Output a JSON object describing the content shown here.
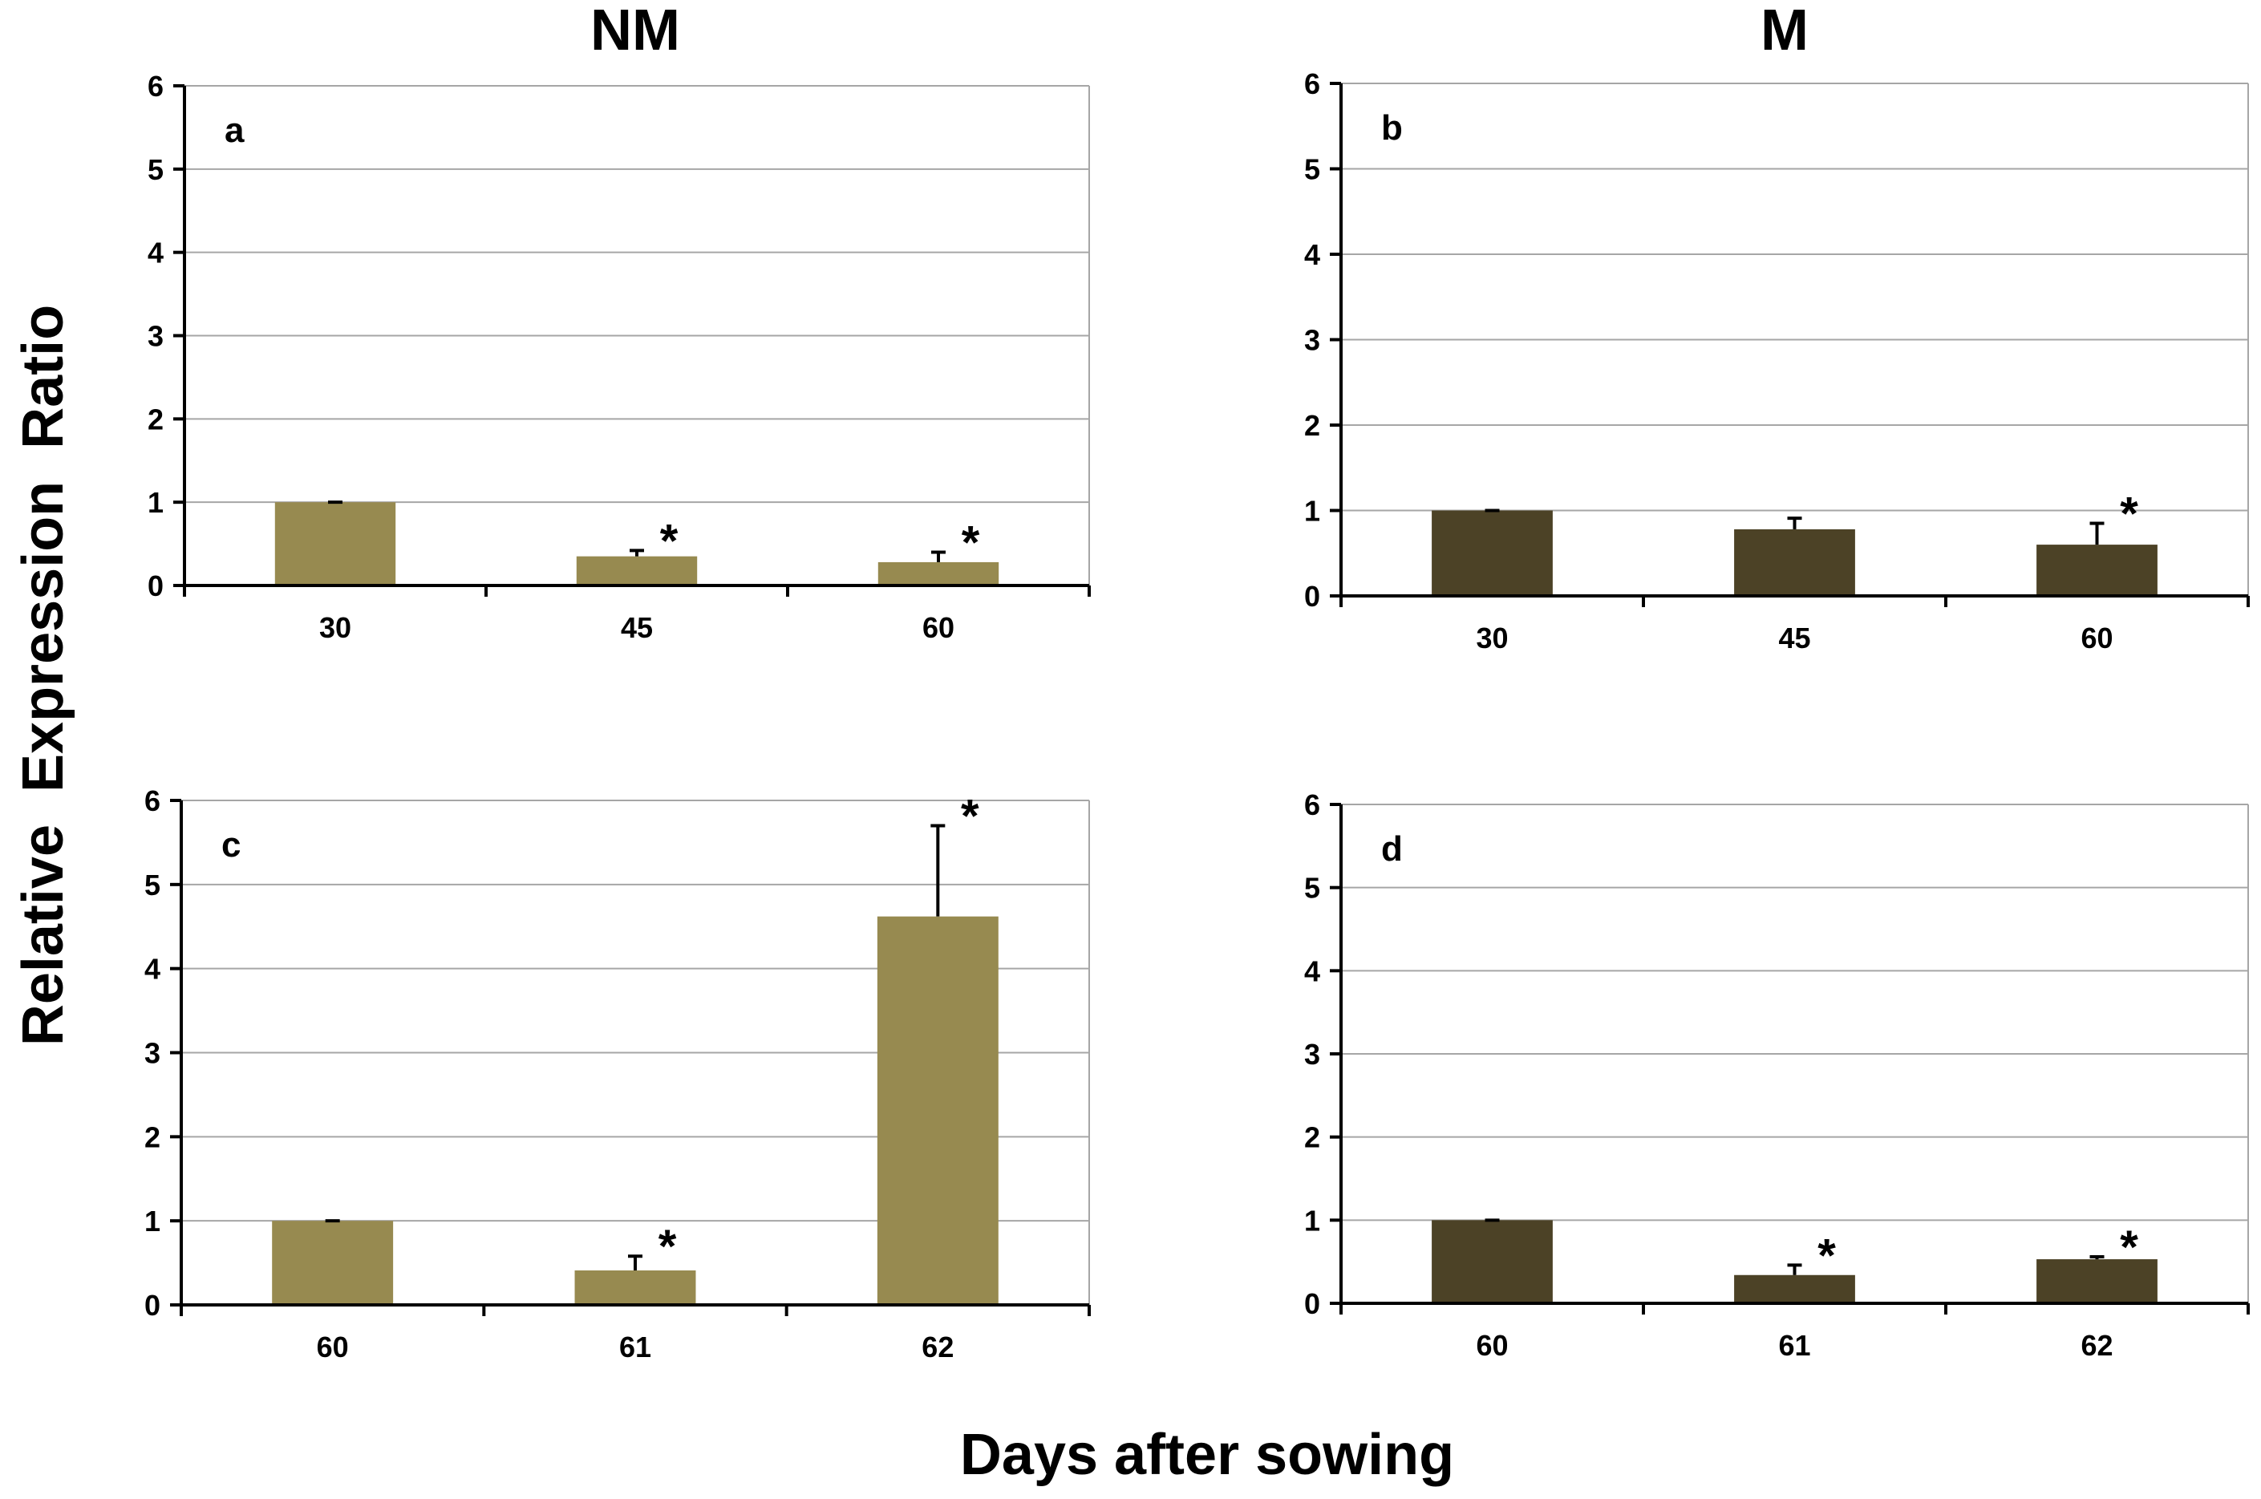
{
  "figure": {
    "column_titles": [
      "NM",
      "M"
    ],
    "ylabel": "Relative  Expression  Ratio",
    "xlabel": "Days after sowing"
  },
  "chart_data": [
    {
      "type": "bar",
      "panel": "a",
      "column": "NM",
      "categories": [
        "30",
        "45",
        "60"
      ],
      "values": [
        1.0,
        0.35,
        0.28
      ],
      "errors": [
        0.0,
        0.07,
        0.12
      ],
      "significant": [
        false,
        true,
        true
      ],
      "ylim": [
        0,
        6
      ],
      "yticks": [
        0,
        1,
        2,
        3,
        4,
        5,
        6
      ],
      "grid": true,
      "color": "#978A50"
    },
    {
      "type": "bar",
      "panel": "b",
      "column": "M",
      "categories": [
        "30",
        "45",
        "60"
      ],
      "values": [
        1.0,
        0.78,
        0.6
      ],
      "errors": [
        0.0,
        0.13,
        0.25
      ],
      "significant": [
        false,
        false,
        true
      ],
      "ylim": [
        0,
        6
      ],
      "yticks": [
        0,
        1,
        2,
        3,
        4,
        5,
        6
      ],
      "grid": true,
      "color": "#4C4226"
    },
    {
      "type": "bar",
      "panel": "c",
      "column": "NM",
      "categories": [
        "60",
        "61",
        "62"
      ],
      "values": [
        1.0,
        0.41,
        4.62
      ],
      "errors": [
        0.0,
        0.17,
        1.08
      ],
      "significant": [
        false,
        true,
        true
      ],
      "ylim": [
        0,
        6
      ],
      "yticks": [
        0,
        1,
        2,
        3,
        4,
        5,
        6
      ],
      "grid": true,
      "color": "#978A50"
    },
    {
      "type": "bar",
      "panel": "d",
      "column": "M",
      "categories": [
        "60",
        "61",
        "62"
      ],
      "values": [
        1.0,
        0.34,
        0.53
      ],
      "errors": [
        0.0,
        0.12,
        0.03
      ],
      "significant": [
        false,
        true,
        true
      ],
      "ylim": [
        0,
        6
      ],
      "yticks": [
        0,
        1,
        2,
        3,
        4,
        5,
        6
      ],
      "grid": true,
      "color": "#4C4226"
    }
  ],
  "significance_marker": "*"
}
